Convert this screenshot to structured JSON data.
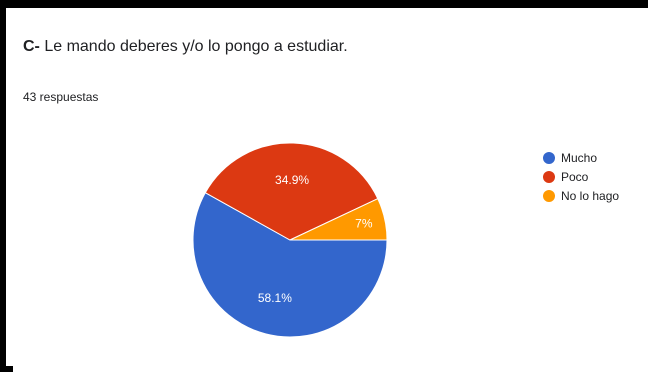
{
  "question": {
    "prefix": "C-",
    "text": " Le mando deberes y/o lo pongo a estudiar."
  },
  "responses_count": "43 respuestas",
  "chart_data": {
    "type": "pie",
    "categories": [
      "Mucho",
      "Poco",
      "No lo hago"
    ],
    "values": [
      58.1,
      34.9,
      7.0
    ],
    "value_labels": [
      "58.1%",
      "34.9%",
      "7%"
    ],
    "colors": [
      "#3366CC",
      "#DC3912",
      "#FF9900"
    ],
    "legend_position": "right"
  }
}
